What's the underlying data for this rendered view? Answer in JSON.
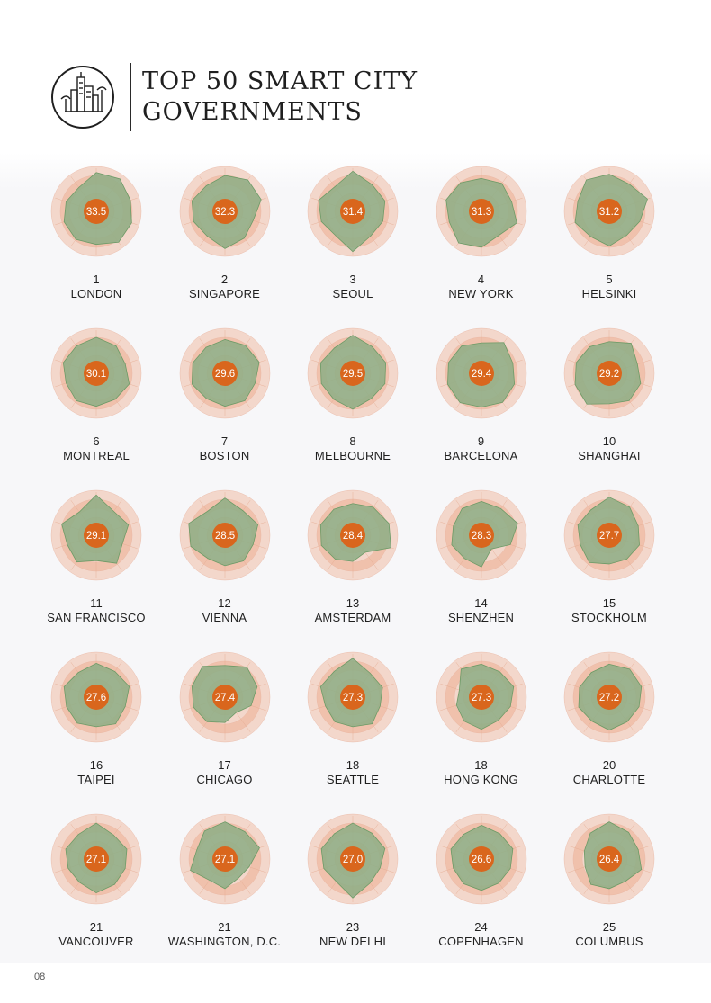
{
  "header": {
    "title": "TOP 50 SMART CITY\nGOVERNMENTS"
  },
  "page_number": "08",
  "colors": {
    "ring_outer": "#f3d7cb",
    "ring_inner": "#f0c1ac",
    "polygon_fill": "#8fae86",
    "polygon_stroke": "#6d9a66",
    "center": "#d9661d",
    "center_text": "#ffffff"
  },
  "chart_data": {
    "type": "radar",
    "cities": [
      {
        "rank": "1",
        "name": "LONDON",
        "score": "33.5",
        "profile": [
          0.92,
          0.95,
          0.85,
          0.88,
          0.9,
          0.78,
          0.82,
          0.8,
          0.75,
          0.7
        ]
      },
      {
        "rank": "2",
        "name": "SINGAPORE",
        "score": "32.3",
        "profile": [
          0.85,
          0.92,
          0.9,
          0.7,
          0.78,
          0.88,
          0.72,
          0.78,
          0.82,
          0.75
        ]
      },
      {
        "rank": "3",
        "name": "SEOUL",
        "score": "31.4",
        "profile": [
          0.95,
          0.78,
          0.8,
          0.75,
          0.72,
          0.95,
          0.7,
          0.78,
          0.85,
          0.72
        ]
      },
      {
        "rank": "4",
        "name": "NEW YORK",
        "score": "31.3",
        "profile": [
          0.78,
          0.82,
          0.75,
          0.88,
          0.7,
          0.85,
          0.92,
          0.8,
          0.88,
          0.84
        ]
      },
      {
        "rank": "5",
        "name": "HELSINKI",
        "score": "31.2",
        "profile": [
          0.88,
          0.8,
          0.95,
          0.76,
          0.7,
          0.82,
          0.74,
          0.85,
          0.78,
          0.92
        ]
      },
      {
        "rank": "6",
        "name": "MONTREAL",
        "score": "30.1",
        "profile": [
          0.85,
          0.8,
          0.72,
          0.82,
          0.76,
          0.78,
          0.8,
          0.75,
          0.82,
          0.8
        ]
      },
      {
        "rank": "7",
        "name": "BOSTON",
        "score": "29.6",
        "profile": [
          0.8,
          0.82,
          0.85,
          0.75,
          0.8,
          0.78,
          0.74,
          0.82,
          0.8,
          0.76
        ]
      },
      {
        "rank": "8",
        "name": "MELBOURNE",
        "score": "29.5",
        "profile": [
          0.9,
          0.78,
          0.82,
          0.8,
          0.74,
          0.85,
          0.76,
          0.78,
          0.8,
          0.74
        ]
      },
      {
        "rank": "9",
        "name": "BARCELONA",
        "score": "29.4",
        "profile": [
          0.72,
          0.9,
          0.78,
          0.82,
          0.85,
          0.8,
          0.86,
          0.84,
          0.82,
          0.8
        ]
      },
      {
        "rank": "10",
        "name": "SHANGHAI",
        "score": "29.2",
        "profile": [
          0.75,
          0.88,
          0.7,
          0.78,
          0.8,
          0.72,
          0.9,
          0.85,
          0.82,
          0.78
        ]
      },
      {
        "rank": "11",
        "name": "SAN FRANCISCO",
        "score": "29.1",
        "profile": [
          0.95,
          0.7,
          0.8,
          0.65,
          0.82,
          0.6,
          0.78,
          0.72,
          0.86,
          0.68
        ]
      },
      {
        "rank": "12",
        "name": "VIENNA",
        "score": "28.5",
        "profile": [
          0.88,
          0.72,
          0.82,
          0.7,
          0.75,
          0.72,
          0.68,
          0.85,
          0.9,
          0.7
        ]
      },
      {
        "rank": "13",
        "name": "AMSTERDAM",
        "score": "28.4",
        "profile": [
          0.75,
          0.82,
          0.9,
          0.95,
          0.5,
          0.62,
          0.7,
          0.78,
          0.8,
          0.76
        ]
      },
      {
        "rank": "14",
        "name": "SHENZHEN",
        "score": "28.3",
        "profile": [
          0.8,
          0.78,
          0.9,
          0.72,
          0.4,
          0.75,
          0.68,
          0.74,
          0.7,
          0.78
        ]
      },
      {
        "rank": "15",
        "name": "STOCKHOLM",
        "score": "27.7",
        "profile": [
          0.9,
          0.82,
          0.72,
          0.75,
          0.7,
          0.68,
          0.8,
          0.72,
          0.78,
          0.74
        ]
      },
      {
        "rank": "16",
        "name": "TAIPEI",
        "score": "27.6",
        "profile": [
          0.8,
          0.75,
          0.82,
          0.72,
          0.78,
          0.7,
          0.76,
          0.74,
          0.8,
          0.72
        ]
      },
      {
        "rank": "17",
        "name": "CHICAGO",
        "score": "27.4",
        "profile": [
          0.75,
          0.88,
          0.8,
          0.65,
          0.45,
          0.6,
          0.72,
          0.78,
          0.82,
          0.9
        ]
      },
      {
        "rank": "18",
        "name": "SEATTLE",
        "score": "27.3",
        "profile": [
          0.92,
          0.7,
          0.74,
          0.68,
          0.78,
          0.7,
          0.72,
          0.68,
          0.8,
          0.75
        ]
      },
      {
        "rank": "18",
        "name": "HONG KONG",
        "score": "27.3",
        "profile": [
          0.78,
          0.74,
          0.8,
          0.72,
          0.68,
          0.76,
          0.7,
          0.62,
          0.55,
          0.82
        ]
      },
      {
        "rank": "20",
        "name": "CHARLOTTE",
        "score": "27.2",
        "profile": [
          0.78,
          0.82,
          0.8,
          0.74,
          0.72,
          0.78,
          0.7,
          0.76,
          0.74,
          0.72
        ]
      },
      {
        "rank": "21",
        "name": "VANCOUVER",
        "score": "27.1",
        "profile": [
          0.85,
          0.7,
          0.76,
          0.72,
          0.74,
          0.8,
          0.68,
          0.7,
          0.76,
          0.72
        ]
      },
      {
        "rank": "21",
        "name": "WASHINGTON, D.C.",
        "score": "27.1",
        "profile": [
          0.88,
          0.8,
          0.86,
          0.6,
          0.55,
          0.7,
          0.62,
          0.86,
          0.7,
          0.82
        ]
      },
      {
        "rank": "23",
        "name": "NEW DELHI",
        "score": "27.0",
        "profile": [
          0.85,
          0.76,
          0.8,
          0.68,
          0.7,
          0.92,
          0.66,
          0.72,
          0.78,
          0.74
        ]
      },
      {
        "rank": "24",
        "name": "COPENHAGEN",
        "score": "26.6",
        "profile": [
          0.8,
          0.74,
          0.78,
          0.72,
          0.7,
          0.74,
          0.72,
          0.7,
          0.76,
          0.72
        ]
      },
      {
        "rank": "25",
        "name": "COLUMBUS",
        "score": "26.4",
        "profile": [
          0.88,
          0.78,
          0.72,
          0.8,
          0.65,
          0.7,
          0.74,
          0.6,
          0.62,
          0.76
        ]
      }
    ]
  }
}
